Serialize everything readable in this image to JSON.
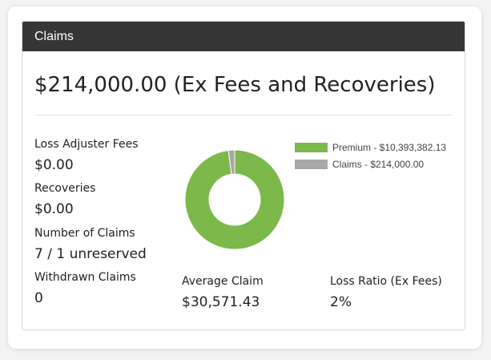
{
  "panel": {
    "title": "Claims"
  },
  "headline": "$214,000.00 (Ex Fees and Recoveries)",
  "stats": [
    {
      "label": "Loss Adjuster Fees",
      "value": "$0.00"
    },
    {
      "label": "Recoveries",
      "value": "$0.00"
    },
    {
      "label": "Number of Claims",
      "value": "7 / 1 unreserved"
    },
    {
      "label": "Withdrawn Claims",
      "value": "0"
    }
  ],
  "average_claim": {
    "label": "Average Claim",
    "value": "$30,571.43"
  },
  "loss_ratio": {
    "label": "Loss Ratio (Ex Fees)",
    "value": "2%"
  },
  "legend": [
    {
      "text": "Premium - $10,393,382.13",
      "color": "#7cb84a"
    },
    {
      "text": "Claims - $214,000.00",
      "color": "#a8a8a8"
    }
  ],
  "chart_data": {
    "type": "pie",
    "categories": [
      "Premium",
      "Claims"
    ],
    "values": [
      10393382.13,
      214000.0
    ],
    "colors": [
      "#7cb84a",
      "#a8a8a8"
    ],
    "donut": true
  },
  "colors": {
    "header_bg": "#363636",
    "premium": "#7cb84a",
    "claims": "#a8a8a8"
  }
}
